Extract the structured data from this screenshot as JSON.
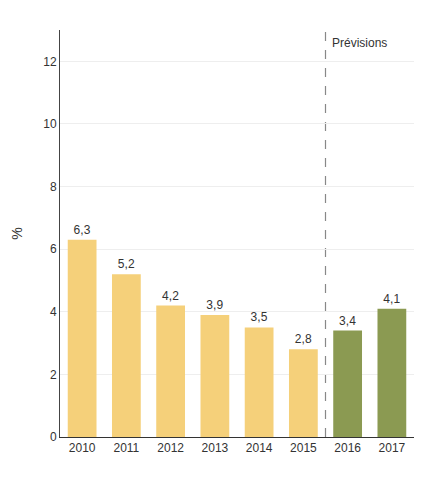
{
  "chart_data": {
    "type": "bar",
    "ylabel": "%",
    "categories": [
      "2010",
      "2011",
      "2012",
      "2013",
      "2014",
      "2015",
      "2016",
      "2017"
    ],
    "values": [
      6.3,
      5.2,
      4.2,
      3.9,
      3.5,
      2.8,
      3.4,
      4.1
    ],
    "value_labels": [
      "6,3",
      "5,2",
      "4,2",
      "3,9",
      "3,5",
      "2,8",
      "3,4",
      "4,1"
    ],
    "data_labels": true,
    "colors": [
      "#F5D07A",
      "#F5D07A",
      "#F5D07A",
      "#F5D07A",
      "#F5D07A",
      "#F5D07A",
      "#8B9A52",
      "#8B9A52"
    ],
    "ylim": [
      0,
      13
    ],
    "yticks": [
      0,
      2,
      4,
      6,
      8,
      10,
      12
    ],
    "grid": true,
    "annotations": [
      "Prévisions"
    ]
  }
}
